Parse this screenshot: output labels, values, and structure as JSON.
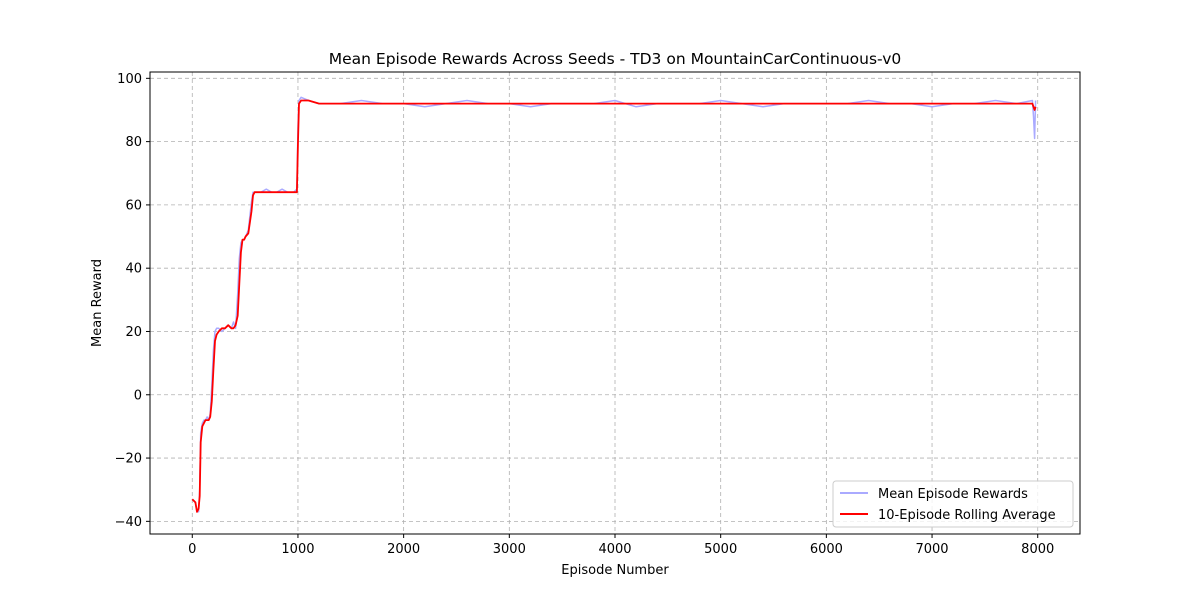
{
  "chart_data": {
    "type": "line",
    "title": "Mean Episode Rewards Across Seeds - TD3 on MountainCarContinuous-v0",
    "xlabel": "Episode Number",
    "ylabel": "Mean Reward",
    "xlim": [
      -400,
      8400
    ],
    "ylim": [
      -44,
      102
    ],
    "xticks": [
      0,
      1000,
      2000,
      3000,
      4000,
      5000,
      6000,
      7000,
      8000
    ],
    "xtick_labels": [
      "0",
      "1000",
      "2000",
      "3000",
      "4000",
      "5000",
      "6000",
      "7000",
      "8000"
    ],
    "yticks": [
      -40,
      -20,
      0,
      20,
      40,
      60,
      80,
      100
    ],
    "ytick_labels": [
      "−40",
      "−20",
      "0",
      "20",
      "40",
      "60",
      "80",
      "100"
    ],
    "grid": true,
    "legend_position": "bottom-right",
    "series": [
      {
        "name": "Mean Episode Rewards",
        "color": "#aaaaff",
        "x": [
          0,
          30,
          45,
          60,
          70,
          80,
          95,
          110,
          125,
          140,
          155,
          170,
          185,
          200,
          215,
          230,
          250,
          280,
          310,
          340,
          370,
          390,
          410,
          430,
          445,
          460,
          475,
          490,
          505,
          530,
          560,
          575,
          590,
          610,
          650,
          700,
          750,
          800,
          850,
          900,
          930,
          960,
          990,
          1000,
          1010,
          1030,
          1100,
          1200,
          1400,
          1600,
          1800,
          2000,
          2200,
          2400,
          2600,
          2800,
          3000,
          3200,
          3400,
          3600,
          3800,
          4000,
          4200,
          4400,
          4600,
          4800,
          5000,
          5200,
          5400,
          5600,
          5800,
          6000,
          6200,
          6400,
          6600,
          6800,
          7000,
          7200,
          7400,
          7600,
          7800,
          7950,
          7960,
          7970,
          7980
        ],
        "y": [
          -33,
          -34,
          -37,
          -37,
          -30,
          -12,
          -9,
          -8,
          -8,
          -7,
          -8,
          -6,
          3,
          14,
          20,
          21,
          21,
          20,
          21,
          22,
          21,
          23,
          21,
          32,
          43,
          48,
          49,
          49,
          50,
          52,
          61,
          64,
          64,
          64,
          64,
          65,
          64,
          64,
          65,
          64,
          64,
          64,
          65,
          85,
          93,
          94,
          93,
          92,
          92,
          93,
          92,
          92,
          91,
          92,
          93,
          92,
          92,
          91,
          92,
          92,
          92,
          93,
          91,
          92,
          92,
          92,
          93,
          92,
          91,
          92,
          92,
          92,
          92,
          93,
          92,
          92,
          91,
          92,
          92,
          93,
          92,
          93,
          88,
          81,
          93
        ]
      },
      {
        "name": "10-Episode Rolling Average",
        "color": "#ff0000",
        "x": [
          0,
          30,
          45,
          60,
          70,
          80,
          95,
          110,
          125,
          140,
          155,
          170,
          185,
          200,
          215,
          230,
          250,
          280,
          310,
          340,
          370,
          390,
          410,
          430,
          445,
          460,
          475,
          490,
          505,
          530,
          560,
          575,
          590,
          610,
          650,
          700,
          750,
          800,
          850,
          900,
          930,
          960,
          990,
          1000,
          1010,
          1030,
          1100,
          1200,
          1400,
          1600,
          1800,
          2000,
          2200,
          2400,
          2600,
          2800,
          3000,
          3200,
          3400,
          3600,
          3800,
          4000,
          4200,
          4400,
          4600,
          4800,
          5000,
          5200,
          5400,
          5600,
          5800,
          6000,
          6200,
          6400,
          6600,
          6800,
          7000,
          7200,
          7400,
          7600,
          7800,
          7950,
          7960,
          7970,
          7980
        ],
        "y": [
          -33,
          -34,
          -37,
          -36,
          -32,
          -15,
          -10,
          -9,
          -8,
          -8,
          -8,
          -7,
          -2,
          8,
          17,
          19,
          20,
          21,
          21,
          22,
          21,
          21,
          22,
          25,
          35,
          45,
          49,
          49,
          50,
          51,
          58,
          63,
          64,
          64,
          64,
          64,
          64,
          64,
          64,
          64,
          64,
          64,
          64,
          80,
          92,
          93,
          93,
          92,
          92,
          92,
          92,
          92,
          92,
          92,
          92,
          92,
          92,
          92,
          92,
          92,
          92,
          92,
          92,
          92,
          92,
          92,
          92,
          92,
          92,
          92,
          92,
          92,
          92,
          92,
          92,
          92,
          92,
          92,
          92,
          92,
          92,
          92,
          91,
          90,
          91
        ]
      }
    ]
  }
}
